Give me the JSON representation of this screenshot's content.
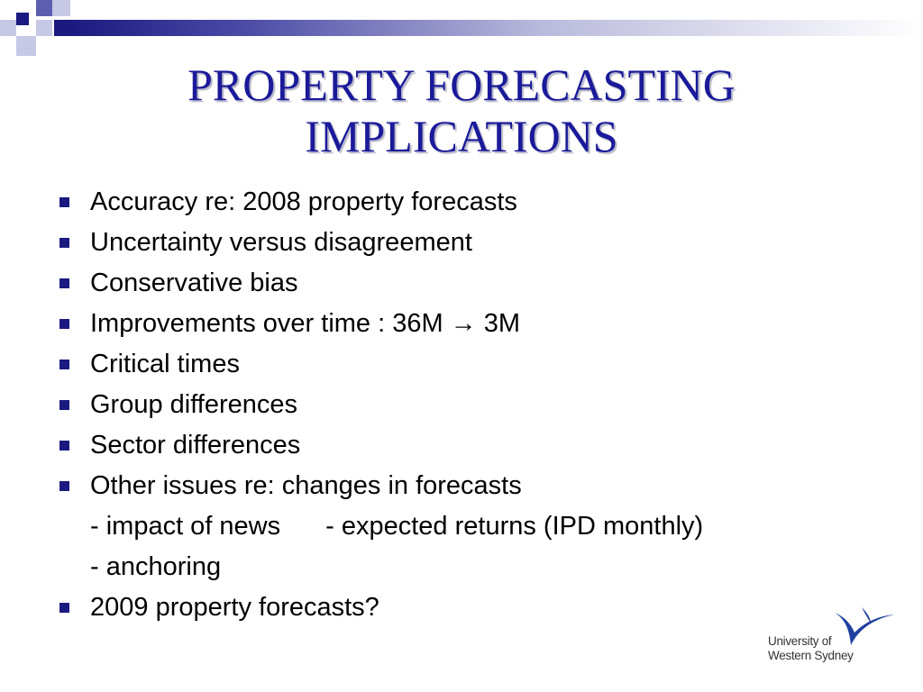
{
  "slide": {
    "title_line1": "PROPERTY FORECASTING",
    "title_line2": "IMPLICATIONS",
    "bullets": [
      "Accuracy re: 2008 property forecasts",
      "Uncertainty versus disagreement",
      "Conservative bias",
      "Improvements over time : 36M → 3M",
      "Critical times",
      "Group differences",
      "Sector differences",
      "Other issues re: changes in forecasts"
    ],
    "sub_items": {
      "impact_of_news": "-  impact of news",
      "expected_returns": "-  expected returns (IPD monthly)",
      "anchoring": "-  anchoring"
    },
    "last_bullet": "2009 property forecasts?",
    "logo": {
      "line1": "University of",
      "line2": "Western Sydney"
    },
    "colors": {
      "title": "#1a1a9a",
      "accent": "#1a1a80",
      "logo_blue": "#1f3f9f"
    }
  }
}
